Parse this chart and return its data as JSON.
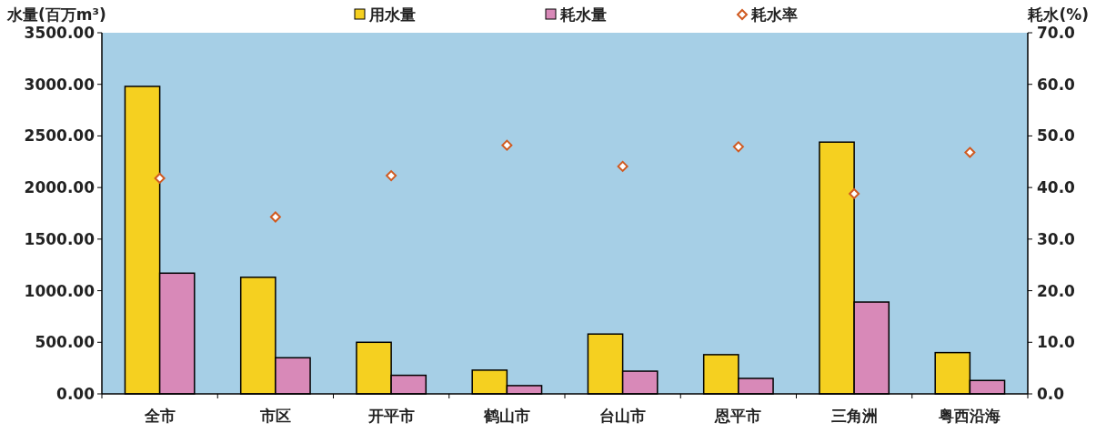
{
  "chart_data": {
    "type": "bar",
    "ylabel": "水量(百万m³)",
    "y2label": "耗水(%)",
    "categories": [
      "全市",
      "市区",
      "开平市",
      "鹤山市",
      "台山市",
      "恩平市",
      "三角洲",
      "粤西沿海"
    ],
    "series": [
      {
        "name": "用水量",
        "color": "#f5d020",
        "values": [
          2980,
          1130,
          500,
          230,
          580,
          380,
          2440,
          400
        ]
      },
      {
        "name": "耗水量",
        "color": "#d889b8",
        "values": [
          1170,
          350,
          180,
          80,
          220,
          150,
          890,
          130
        ]
      },
      {
        "name": "耗水率",
        "type": "scatter",
        "axis": "y2",
        "color": "#d05a20",
        "marker": "diamond",
        "values": [
          41.8,
          34.3,
          42.3,
          48.2,
          44.1,
          47.9,
          38.8,
          46.8
        ]
      }
    ],
    "ylim": [
      0,
      3500
    ],
    "yticks": [
      {
        "value": 0,
        "label": "0.00"
      },
      {
        "value": 500,
        "label": "500.00"
      },
      {
        "value": 1000,
        "label": "1000.00"
      },
      {
        "value": 1500,
        "label": "1500.00"
      },
      {
        "value": 2000,
        "label": "2000.00"
      },
      {
        "value": 2500,
        "label": "2500.00"
      },
      {
        "value": 3000,
        "label": "3000.00"
      },
      {
        "value": 3500,
        "label": "3500.00"
      }
    ],
    "y2lim": [
      0,
      70
    ],
    "y2ticks": [
      {
        "value": 0,
        "label": "0.0"
      },
      {
        "value": 10,
        "label": "10.0"
      },
      {
        "value": 20,
        "label": "20.0"
      },
      {
        "value": 30,
        "label": "30.0"
      },
      {
        "value": 40,
        "label": "40.0"
      },
      {
        "value": 50,
        "label": "50.0"
      },
      {
        "value": 60,
        "label": "60.0"
      },
      {
        "value": 70,
        "label": "70.0"
      }
    ],
    "grid": false,
    "legend": "top"
  }
}
